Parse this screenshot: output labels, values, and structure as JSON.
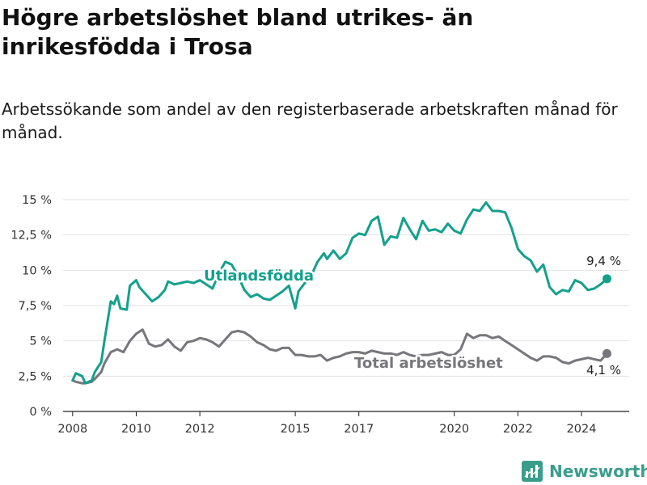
{
  "title": "Högre arbetslöshet bland utrikes- än inrikesfödda i Trosa",
  "subtitle": "Arbetssökande som andel av den registerbaserade arbetskraften månad för månad.",
  "brand": {
    "name": "Newsworthy",
    "icon": "newsworthy-logo-icon",
    "color": "#3a9d8c"
  },
  "chart_data": {
    "type": "line",
    "x_unit": "year",
    "ylim": [
      0,
      15
    ],
    "y_ticks": [
      0,
      2.5,
      5,
      7.5,
      10,
      12.5,
      15
    ],
    "y_tick_labels": [
      "0 %",
      "2,5 %",
      "5 %",
      "7,5 %",
      "10 %",
      "12,5 %",
      "15 %"
    ],
    "x_ticks": [
      2008,
      2010,
      2012,
      2015,
      2017,
      2020,
      2022,
      2024
    ],
    "x_tick_labels": [
      "2008",
      "2010",
      "2012",
      "2015",
      "2017",
      "2020",
      "2022",
      "2024"
    ],
    "grid": "horizontal",
    "series": [
      {
        "name": "Utlandsfödda",
        "color": "#14a08c",
        "end_label": "9,4 %",
        "x": [
          2008.0,
          2008.1,
          2008.3,
          2008.4,
          2008.6,
          2008.7,
          2008.9,
          2009.0,
          2009.2,
          2009.3,
          2009.4,
          2009.5,
          2009.7,
          2009.8,
          2010.0,
          2010.1,
          2010.3,
          2010.5,
          2010.7,
          2010.9,
          2011.0,
          2011.2,
          2011.4,
          2011.6,
          2011.8,
          2012.0,
          2012.2,
          2012.4,
          2012.6,
          2012.8,
          2013.0,
          2013.2,
          2013.4,
          2013.6,
          2013.8,
          2014.0,
          2014.2,
          2014.4,
          2014.6,
          2014.8,
          2015.0,
          2015.1,
          2015.3,
          2015.5,
          2015.7,
          2015.9,
          2016.0,
          2016.2,
          2016.4,
          2016.6,
          2016.8,
          2017.0,
          2017.2,
          2017.4,
          2017.6,
          2017.8,
          2018.0,
          2018.2,
          2018.4,
          2018.6,
          2018.8,
          2019.0,
          2019.2,
          2019.4,
          2019.6,
          2019.8,
          2020.0,
          2020.2,
          2020.4,
          2020.6,
          2020.8,
          2021.0,
          2021.2,
          2021.4,
          2021.6,
          2021.8,
          2022.0,
          2022.2,
          2022.4,
          2022.6,
          2022.8,
          2023.0,
          2023.2,
          2023.4,
          2023.6,
          2023.8,
          2024.0,
          2024.2,
          2024.4,
          2024.6,
          2024.8
        ],
        "values": [
          2.2,
          2.7,
          2.5,
          2.0,
          2.2,
          2.8,
          3.5,
          5.0,
          7.8,
          7.6,
          8.2,
          7.3,
          7.2,
          8.9,
          9.3,
          8.8,
          8.3,
          7.8,
          8.1,
          8.6,
          9.2,
          9.0,
          9.1,
          9.2,
          9.1,
          9.3,
          9.0,
          8.7,
          9.8,
          10.6,
          10.4,
          9.6,
          8.6,
          8.1,
          8.3,
          8.0,
          7.9,
          8.2,
          8.5,
          8.9,
          7.3,
          8.5,
          9.1,
          9.6,
          10.6,
          11.2,
          10.8,
          11.4,
          10.8,
          11.2,
          12.3,
          12.6,
          12.5,
          13.5,
          13.8,
          11.8,
          12.4,
          12.3,
          13.7,
          12.9,
          12.2,
          13.5,
          12.8,
          12.9,
          12.7,
          13.3,
          12.8,
          12.6,
          13.6,
          14.3,
          14.2,
          14.8,
          14.2,
          14.2,
          14.1,
          13.0,
          11.5,
          11.0,
          10.7,
          9.9,
          10.4,
          8.8,
          8.3,
          8.6,
          8.5,
          9.3,
          9.1,
          8.6,
          8.7,
          9.0,
          9.4
        ]
      },
      {
        "name": "Total arbetslöshet",
        "color": "#76767b",
        "end_label": "4,1 %",
        "x": [
          2008.0,
          2008.1,
          2008.3,
          2008.4,
          2008.6,
          2008.7,
          2008.9,
          2009.0,
          2009.2,
          2009.4,
          2009.6,
          2009.8,
          2010.0,
          2010.2,
          2010.4,
          2010.6,
          2010.8,
          2011.0,
          2011.2,
          2011.4,
          2011.6,
          2011.8,
          2012.0,
          2012.2,
          2012.4,
          2012.6,
          2012.8,
          2013.0,
          2013.2,
          2013.4,
          2013.6,
          2013.8,
          2014.0,
          2014.2,
          2014.4,
          2014.6,
          2014.8,
          2015.0,
          2015.2,
          2015.4,
          2015.6,
          2015.8,
          2016.0,
          2016.2,
          2016.4,
          2016.6,
          2016.8,
          2017.0,
          2017.2,
          2017.4,
          2017.6,
          2017.8,
          2018.0,
          2018.2,
          2018.4,
          2018.6,
          2018.8,
          2019.0,
          2019.2,
          2019.4,
          2019.6,
          2019.8,
          2020.0,
          2020.2,
          2020.4,
          2020.6,
          2020.8,
          2021.0,
          2021.2,
          2021.4,
          2021.6,
          2021.8,
          2022.0,
          2022.2,
          2022.4,
          2022.6,
          2022.8,
          2023.0,
          2023.2,
          2023.4,
          2023.6,
          2023.8,
          2024.0,
          2024.2,
          2024.4,
          2024.6,
          2024.8
        ],
        "values": [
          2.2,
          2.1,
          2.0,
          2.0,
          2.1,
          2.3,
          2.8,
          3.4,
          4.2,
          4.4,
          4.2,
          5.0,
          5.5,
          5.8,
          4.8,
          4.6,
          4.7,
          5.1,
          4.6,
          4.3,
          4.9,
          5.0,
          5.2,
          5.1,
          4.9,
          4.6,
          5.1,
          5.6,
          5.7,
          5.6,
          5.3,
          4.9,
          4.7,
          4.4,
          4.3,
          4.5,
          4.5,
          4.0,
          4.0,
          3.9,
          3.9,
          4.0,
          3.6,
          3.8,
          3.9,
          4.1,
          4.2,
          4.2,
          4.1,
          4.3,
          4.2,
          4.1,
          4.1,
          4.0,
          4.2,
          4.0,
          3.9,
          4.0,
          4.0,
          4.1,
          4.2,
          4.0,
          4.0,
          4.4,
          5.5,
          5.2,
          5.4,
          5.4,
          5.2,
          5.3,
          5.0,
          4.7,
          4.4,
          4.1,
          3.8,
          3.6,
          3.9,
          3.9,
          3.8,
          3.5,
          3.4,
          3.6,
          3.7,
          3.8,
          3.7,
          3.6,
          4.1
        ]
      }
    ]
  }
}
